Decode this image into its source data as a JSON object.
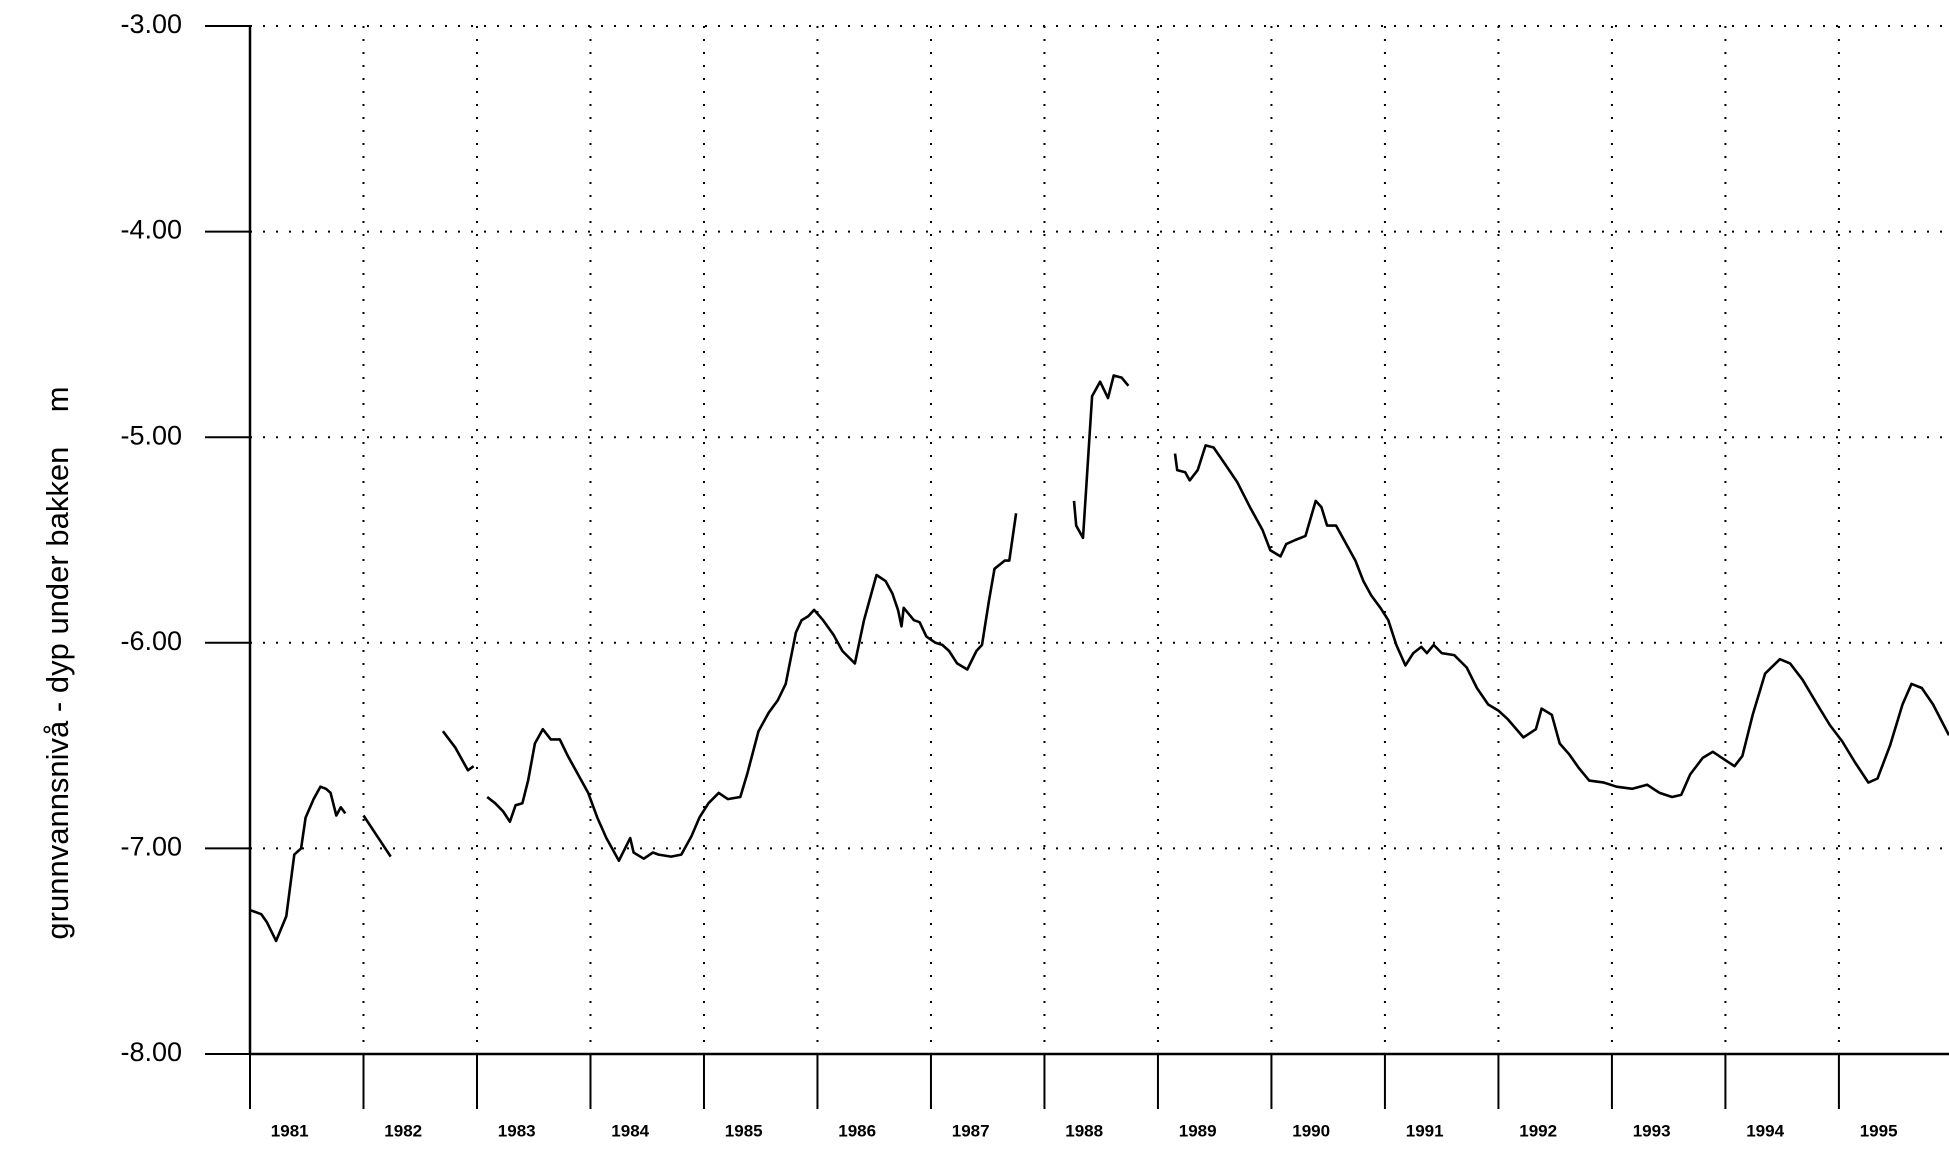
{
  "chart_data": {
    "type": "line",
    "y_axis_label": "grunnvannsnivå - dyp under bakken    m",
    "xlim": [
      1981,
      1995.97
    ],
    "xticks": [
      1981,
      1982,
      1983,
      1984,
      1985,
      1986,
      1987,
      1988,
      1989,
      1990,
      1991,
      1992,
      1993,
      1994,
      1995
    ],
    "ylim": [
      -8,
      -3
    ],
    "yticks": [
      {
        "value": -8,
        "label": "-8.00"
      },
      {
        "value": -7,
        "label": "-7.00"
      },
      {
        "value": -6,
        "label": "-6.00"
      },
      {
        "value": -5,
        "label": "-5.00"
      },
      {
        "value": -4,
        "label": "-4.00"
      },
      {
        "value": -3,
        "label": "-3.00"
      }
    ],
    "grid": true,
    "x": [
      1981.0,
      1981.1,
      1981.15,
      1981.23,
      1981.32,
      1981.39,
      1981.45,
      1981.49,
      1981.56,
      1981.62,
      1981.67,
      1981.71,
      1981.76,
      1981.8,
      1981.84,
      1981.92,
      1982.0,
      1982.24,
      1982.47,
      1982.7,
      1982.81,
      1982.92,
      1982.97,
      1983.03,
      1983.09,
      1983.16,
      1983.23,
      1983.29,
      1983.34,
      1983.4,
      1983.45,
      1983.51,
      1983.58,
      1983.65,
      1983.73,
      1983.8,
      1983.89,
      1983.98,
      1984.06,
      1984.14,
      1984.25,
      1984.35,
      1984.38,
      1984.47,
      1984.55,
      1984.6,
      1984.71,
      1984.8,
      1984.89,
      1984.96,
      1985.04,
      1985.13,
      1985.21,
      1985.32,
      1985.38,
      1985.48,
      1985.57,
      1985.65,
      1985.72,
      1985.81,
      1985.86,
      1985.92,
      1985.97,
      1986.05,
      1986.14,
      1986.22,
      1986.33,
      1986.41,
      1986.52,
      1986.6,
      1986.66,
      1986.71,
      1986.74,
      1986.76,
      1986.85,
      1986.9,
      1986.96,
      1987.04,
      1987.1,
      1987.16,
      1987.23,
      1987.32,
      1987.4,
      1987.45,
      1987.51,
      1987.56,
      1987.65,
      1987.69,
      1987.75,
      1987.95,
      1988.26,
      1988.28,
      1988.34,
      1988.42,
      1988.49,
      1988.56,
      1988.61,
      1988.68,
      1988.74,
      1988.95,
      1989.15,
      1989.17,
      1989.24,
      1989.28,
      1989.35,
      1989.42,
      1989.49,
      1989.59,
      1989.7,
      1989.81,
      1989.92,
      1989.99,
      1990.08,
      1990.13,
      1990.21,
      1990.3,
      1990.39,
      1990.44,
      1990.49,
      1990.57,
      1990.66,
      1990.74,
      1990.81,
      1990.88,
      1990.96,
      1991.03,
      1991.1,
      1991.18,
      1991.25,
      1991.32,
      1991.37,
      1991.43,
      1991.5,
      1991.61,
      1991.72,
      1991.81,
      1991.91,
      1992.0,
      1992.08,
      1992.22,
      1992.33,
      1992.38,
      1992.47,
      1992.54,
      1992.62,
      1992.71,
      1992.8,
      1992.93,
      1993.04,
      1993.18,
      1993.31,
      1993.42,
      1993.53,
      1993.61,
      1993.69,
      1993.8,
      1993.89,
      1993.97,
      1994.08,
      1994.15,
      1994.24,
      1994.35,
      1994.48,
      1994.57,
      1994.68,
      1994.81,
      1994.92,
      1995.03,
      1995.14,
      1995.26,
      1995.34,
      1995.45,
      1995.56,
      1995.64,
      1995.73,
      1995.83,
      1995.97
    ],
    "series": [
      {
        "color": "#000000",
        "values": [
          -7.3,
          -7.32,
          -7.36,
          -7.45,
          -7.33,
          -7.03,
          -7.0,
          -6.85,
          -6.76,
          -6.7,
          -6.71,
          -6.73,
          -6.84,
          -6.8,
          -6.83,
          null,
          -6.84,
          -7.04,
          null,
          -6.43,
          -6.51,
          -6.62,
          -6.6,
          null,
          -6.75,
          -6.78,
          -6.82,
          -6.87,
          -6.79,
          -6.78,
          -6.67,
          -6.49,
          -6.42,
          -6.47,
          -6.47,
          -6.55,
          -6.64,
          -6.73,
          -6.85,
          -6.95,
          -7.06,
          -6.95,
          -7.02,
          -7.05,
          -7.02,
          -7.03,
          -7.04,
          -7.03,
          -6.94,
          -6.85,
          -6.78,
          -6.73,
          -6.76,
          -6.75,
          -6.64,
          -6.43,
          -6.34,
          -6.28,
          -6.2,
          -5.95,
          -5.89,
          -5.87,
          -5.84,
          -5.89,
          -5.96,
          -6.04,
          -6.1,
          -5.89,
          -5.67,
          -5.7,
          -5.76,
          -5.84,
          -5.92,
          -5.83,
          -5.89,
          -5.9,
          -5.97,
          -6.0,
          -6.01,
          -6.04,
          -6.1,
          -6.13,
          -6.04,
          -6.01,
          -5.8,
          -5.64,
          -5.6,
          -5.6,
          -5.37,
          null,
          -5.31,
          -5.43,
          -5.49,
          -4.8,
          -4.73,
          -4.81,
          -4.7,
          -4.71,
          -4.75,
          null,
          -5.08,
          -5.16,
          -5.17,
          -5.21,
          -5.16,
          -5.04,
          -5.05,
          -5.13,
          -5.22,
          -5.34,
          -5.45,
          -5.55,
          -5.58,
          -5.52,
          -5.5,
          -5.48,
          -5.31,
          -5.34,
          -5.43,
          -5.43,
          -5.52,
          -5.6,
          -5.7,
          -5.77,
          -5.83,
          -5.89,
          -6.01,
          -6.11,
          -6.05,
          -6.02,
          -6.05,
          -6.01,
          -6.05,
          -6.06,
          -6.12,
          -6.22,
          -6.3,
          -6.33,
          -6.37,
          -6.46,
          -6.42,
          -6.32,
          -6.35,
          -6.49,
          -6.54,
          -6.61,
          -6.67,
          -6.68,
          -6.7,
          -6.71,
          -6.69,
          -6.73,
          -6.75,
          -6.74,
          -6.64,
          -6.56,
          -6.53,
          -6.56,
          -6.6,
          -6.55,
          -6.35,
          -6.15,
          -6.08,
          -6.1,
          -6.18,
          -6.3,
          -6.4,
          -6.48,
          -6.58,
          -6.68,
          -6.66,
          -6.5,
          -6.3,
          -6.2,
          -6.22,
          -6.3,
          -6.45
        ]
      }
    ]
  }
}
